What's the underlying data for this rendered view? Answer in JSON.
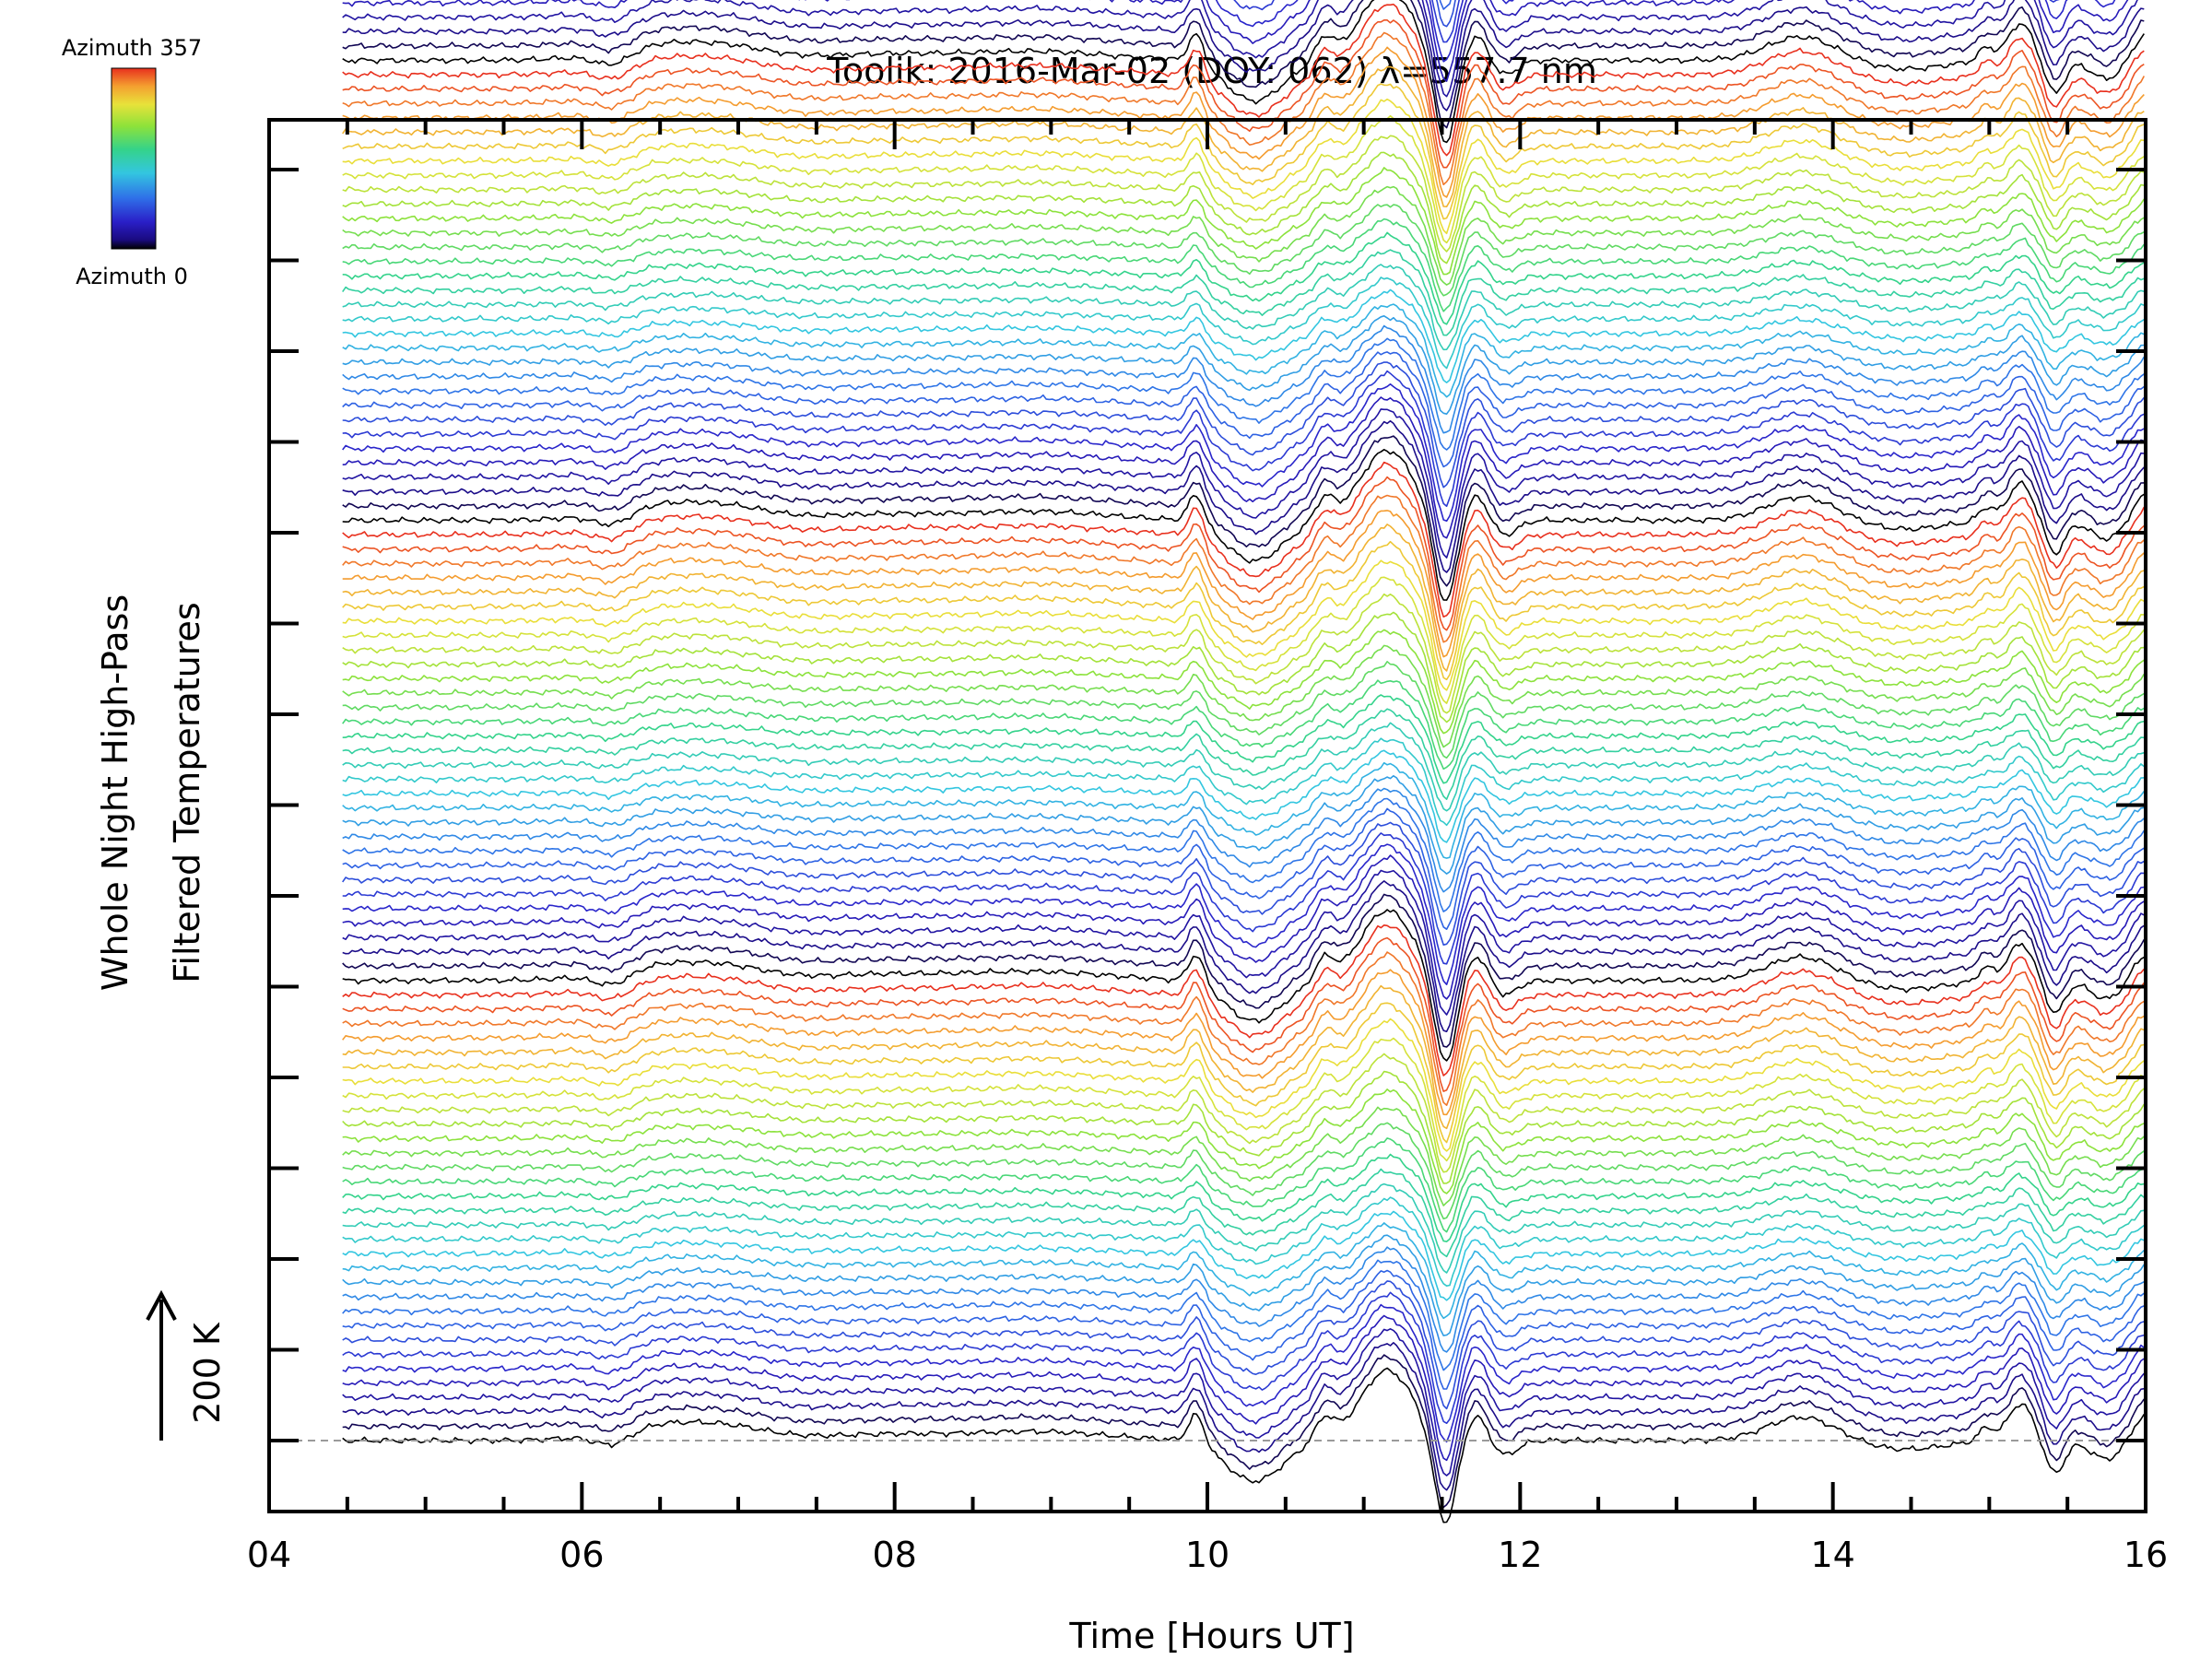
{
  "chart_data": {
    "type": "line",
    "title": "Toolik: 2016-Mar-02 (DOY: 062) λ=557.7 nm",
    "xlabel": "Time [Hours UT]",
    "ylabel_lines": [
      "Whole Night High-Pass",
      "Filtered Temperatures"
    ],
    "xlim": [
      4,
      16
    ],
    "xticks": [
      "04",
      "06",
      "08",
      "10",
      "12",
      "14",
      "16"
    ],
    "x_start": 4.47,
    "scale_bar": {
      "label": "200 K",
      "value": 200
    },
    "colorbar": {
      "top_label": "Azimuth 357",
      "bottom_label": "Azimuth 0",
      "colormap": "rainbow"
    },
    "azimuth_range": [
      0,
      357
    ],
    "n_traces": 168,
    "traces_per_cycle": 32,
    "trace_offset_K": 20,
    "grid": false,
    "legend": "colorbar top-left",
    "events": [
      {
        "x": 9.95,
        "description": "sharp peak then dip"
      },
      {
        "x": 11.15,
        "description": "large positive excursion"
      },
      {
        "x": 11.5,
        "description": "steep drop (gravity wave/front)"
      },
      {
        "x": 13.8,
        "description": "broad bump"
      },
      {
        "x": 15.2,
        "description": "peak then dip"
      }
    ]
  }
}
